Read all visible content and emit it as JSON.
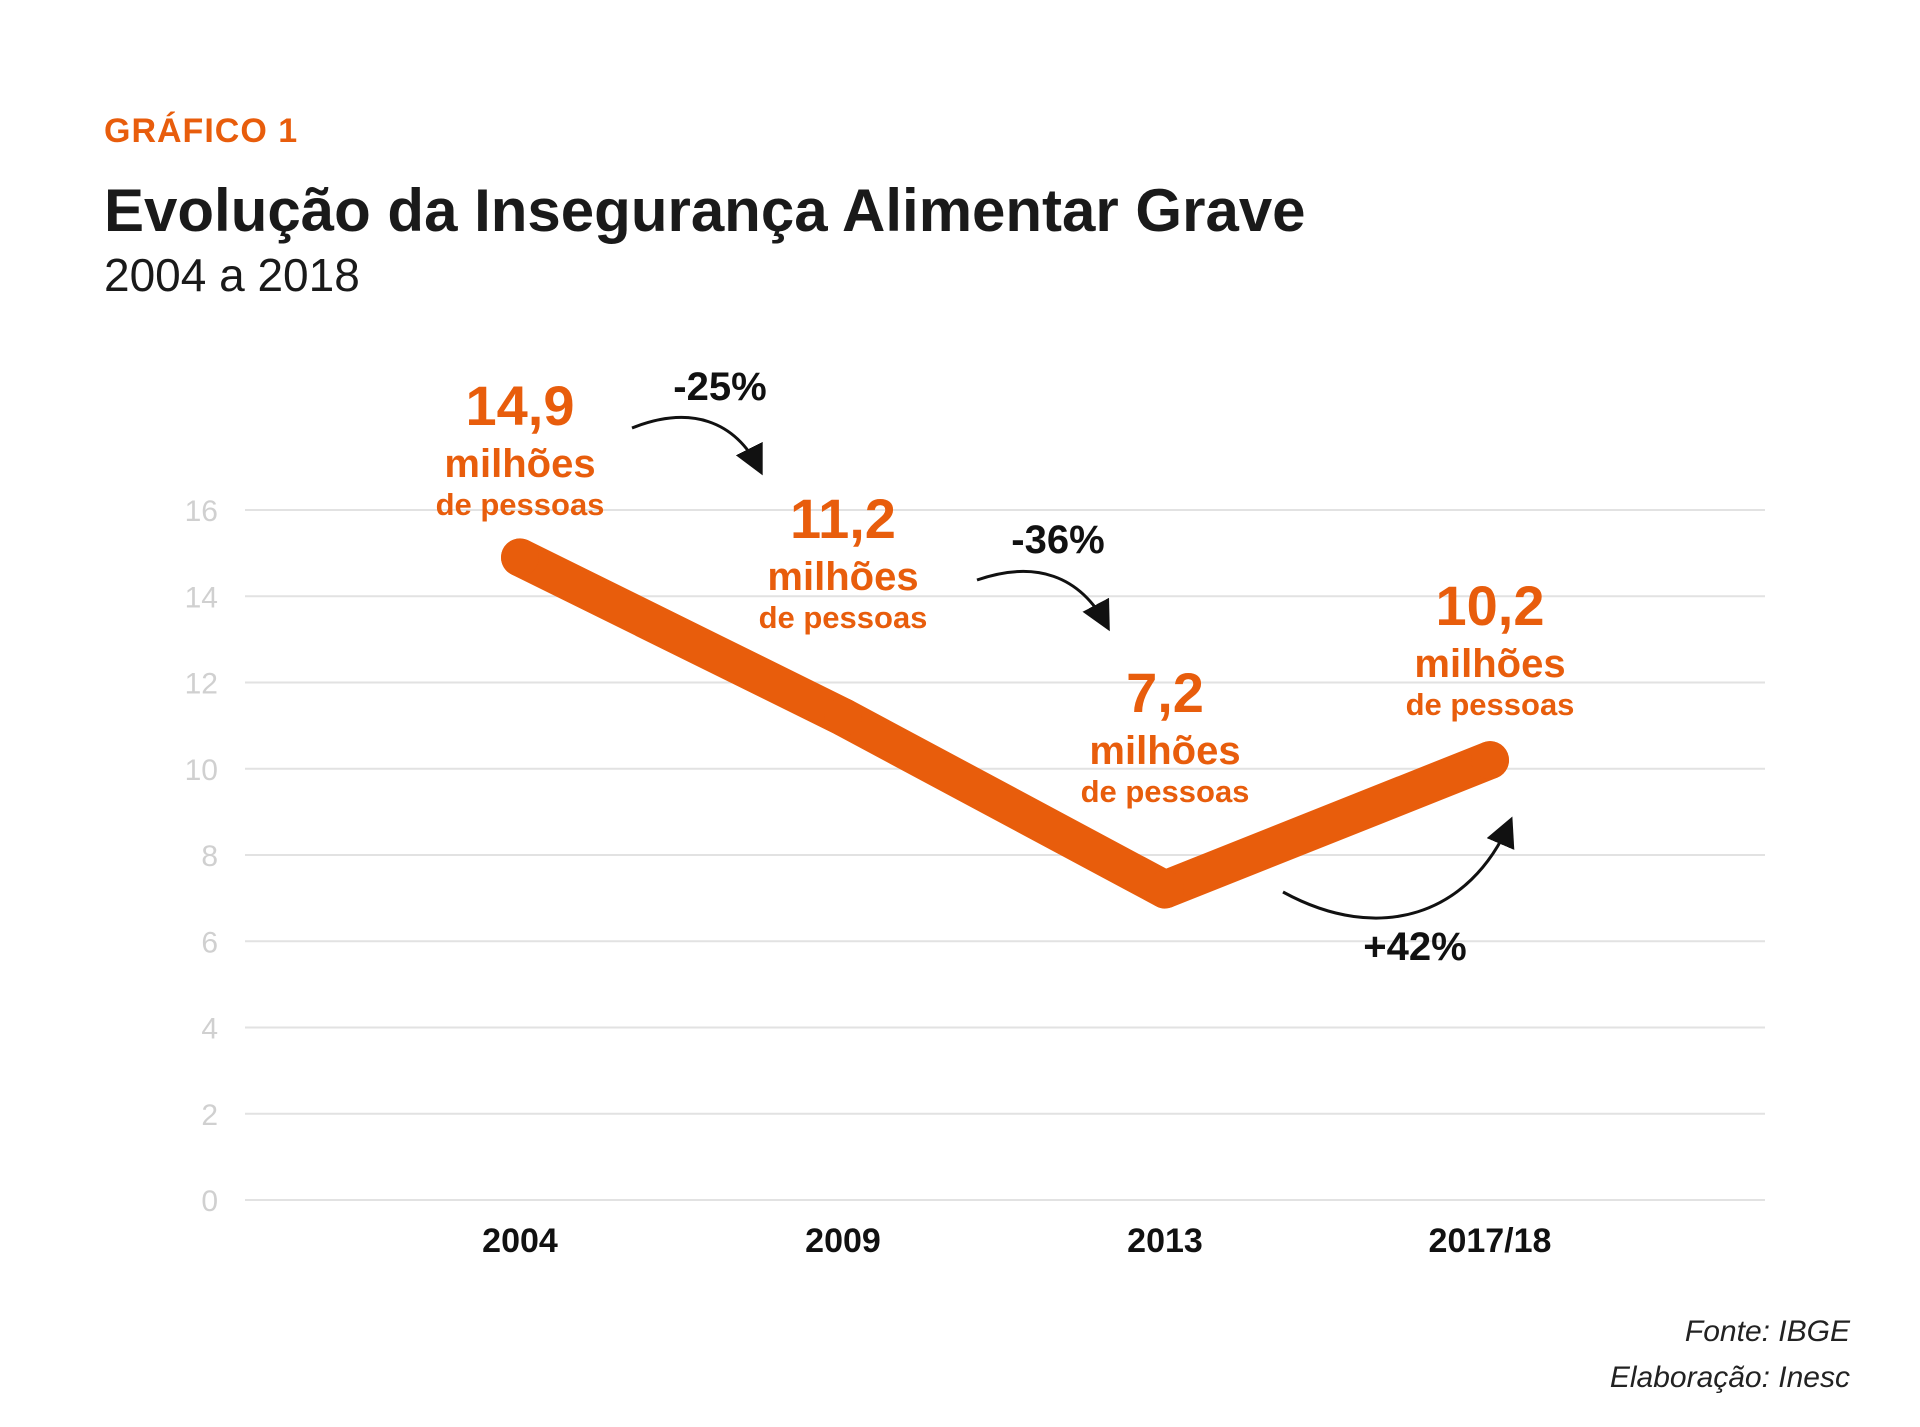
{
  "header": {
    "kicker": "GRÁFICO 1",
    "title": "Evolução da Insegurança Alimentar Grave",
    "subtitle": "2004 a 2018"
  },
  "footer": {
    "source": "Fonte: IBGE",
    "credit": "Elaboração: Inesc"
  },
  "colors": {
    "accent": "#e85d0c",
    "grid": "#e2e2e2",
    "tick": "#d0d0d0",
    "text": "#1a1a1a"
  },
  "chart_data": {
    "type": "line",
    "categories": [
      "2004",
      "2009",
      "2013",
      "2017/18"
    ],
    "values": [
      14.9,
      11.2,
      7.2,
      10.2
    ],
    "value_labels": [
      "14,9",
      "11,2",
      "7,2",
      "10,2"
    ],
    "unit_line1": "milhões",
    "unit_line2": "de pessoas",
    "changes": [
      "-25%",
      "-36%",
      "+42%"
    ],
    "yticks": [
      0,
      2,
      4,
      6,
      8,
      10,
      12,
      14,
      16
    ],
    "ylim": [
      0,
      16
    ],
    "grid": true,
    "legend": "none"
  }
}
